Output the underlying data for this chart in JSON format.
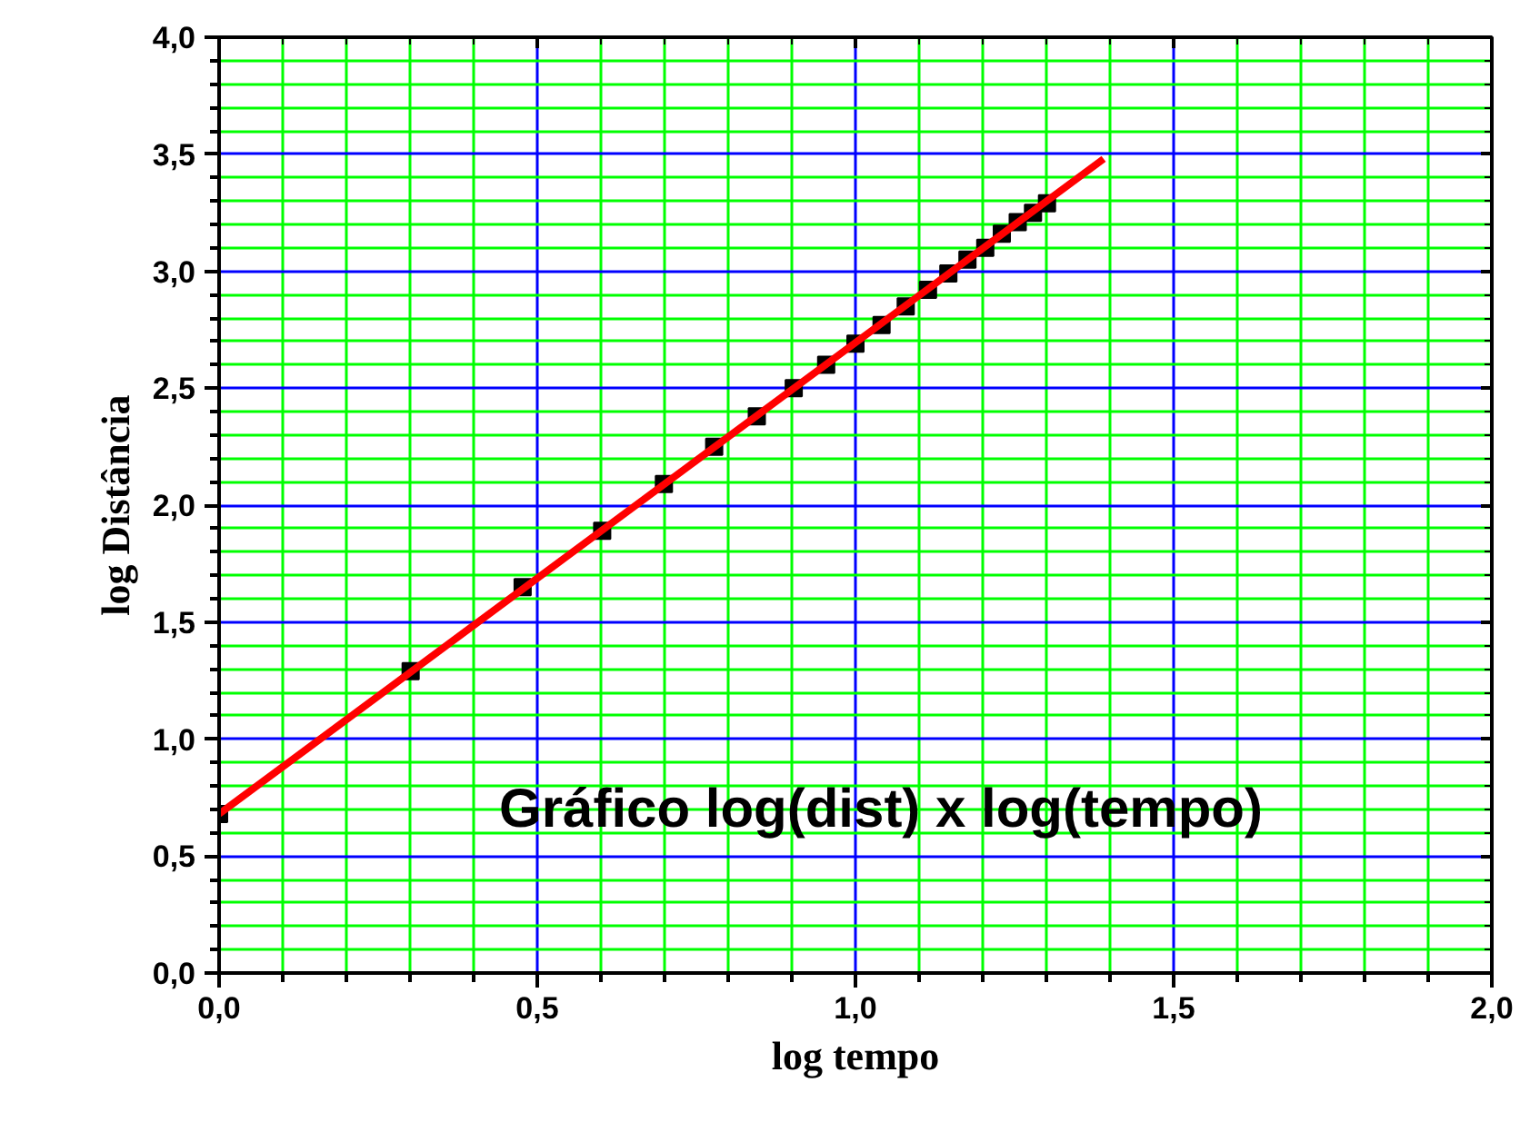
{
  "chart_data": {
    "type": "scatter",
    "xlabel": "log tempo",
    "ylabel": "log Distância",
    "annotations": [
      "Gráfico log(dist) x log(tempo)"
    ],
    "series": [
      {
        "color": "#000000",
        "marker": "square",
        "x": [
          0,
          0.301,
          0.477,
          0.602,
          0.699,
          0.778,
          0.845,
          0.903,
          0.954,
          1.0,
          1.041,
          1.079,
          1.114,
          1.146,
          1.176,
          1.204,
          1.23,
          1.255,
          1.279,
          1.301
        ],
        "values": [
          0.68,
          1.29,
          1.65,
          1.89,
          2.09,
          2.25,
          2.38,
          2.5,
          2.6,
          2.69,
          2.77,
          2.85,
          2.92,
          2.99,
          3.05,
          3.1,
          3.16,
          3.21,
          3.25,
          3.29
        ]
      },
      {
        "type": "line",
        "color": "#ff0000",
        "marker": "none",
        "line_style": "solid",
        "x": [
          0,
          1.39
        ],
        "values": [
          0.68,
          3.48
        ]
      }
    ],
    "xlim": [
      0,
      2.0
    ],
    "ylim": [
      0,
      4.0
    ],
    "xticks": [
      {
        "value": 0,
        "label": "0,0"
      },
      {
        "value": 0.1,
        "label": null
      },
      {
        "value": 0.2,
        "label": null
      },
      {
        "value": 0.3,
        "label": null
      },
      {
        "value": 0.4,
        "label": null
      },
      {
        "value": 0.5,
        "label": "0,5"
      },
      {
        "value": 0.6,
        "label": null
      },
      {
        "value": 0.7,
        "label": null
      },
      {
        "value": 0.8,
        "label": null
      },
      {
        "value": 0.9,
        "label": null
      },
      {
        "value": 1.0,
        "label": "1,0"
      },
      {
        "value": 1.1,
        "label": null
      },
      {
        "value": 1.2,
        "label": null
      },
      {
        "value": 1.3,
        "label": null
      },
      {
        "value": 1.4,
        "label": null
      },
      {
        "value": 1.5,
        "label": "1,5"
      },
      {
        "value": 1.6,
        "label": null
      },
      {
        "value": 1.7,
        "label": null
      },
      {
        "value": 1.8,
        "label": null
      },
      {
        "value": 1.9,
        "label": null
      },
      {
        "value": 2.0,
        "label": "2,0"
      }
    ],
    "yticks": [
      {
        "value": 0,
        "label": "0,0"
      },
      {
        "value": 0.1,
        "label": null
      },
      {
        "value": 0.2,
        "label": null
      },
      {
        "value": 0.3,
        "label": null
      },
      {
        "value": 0.4,
        "label": null
      },
      {
        "value": 0.5,
        "label": "0,5"
      },
      {
        "value": 0.6,
        "label": null
      },
      {
        "value": 0.7,
        "label": null
      },
      {
        "value": 0.8,
        "label": null
      },
      {
        "value": 0.9,
        "label": null
      },
      {
        "value": 1.0,
        "label": "1,0"
      },
      {
        "value": 1.1,
        "label": null
      },
      {
        "value": 1.2,
        "label": null
      },
      {
        "value": 1.3,
        "label": null
      },
      {
        "value": 1.4,
        "label": null
      },
      {
        "value": 1.5,
        "label": "1,5"
      },
      {
        "value": 1.6,
        "label": null
      },
      {
        "value": 1.7,
        "label": null
      },
      {
        "value": 1.8,
        "label": null
      },
      {
        "value": 1.9,
        "label": null
      },
      {
        "value": 2.0,
        "label": "2,0"
      },
      {
        "value": 2.1,
        "label": null
      },
      {
        "value": 2.2,
        "label": null
      },
      {
        "value": 2.3,
        "label": null
      },
      {
        "value": 2.4,
        "label": null
      },
      {
        "value": 2.5,
        "label": "2,5"
      },
      {
        "value": 2.6,
        "label": null
      },
      {
        "value": 2.7,
        "label": null
      },
      {
        "value": 2.8,
        "label": null
      },
      {
        "value": 2.9,
        "label": null
      },
      {
        "value": 3.0,
        "label": "3,0"
      },
      {
        "value": 3.1,
        "label": null
      },
      {
        "value": 3.2,
        "label": null
      },
      {
        "value": 3.3,
        "label": null
      },
      {
        "value": 3.4,
        "label": null
      },
      {
        "value": 3.5,
        "label": "3,5"
      },
      {
        "value": 3.6,
        "label": null
      },
      {
        "value": 3.7,
        "label": null
      },
      {
        "value": 3.8,
        "label": null
      },
      {
        "value": 3.9,
        "label": null
      },
      {
        "value": 4.0,
        "label": "4,0"
      }
    ],
    "grid": true
  }
}
